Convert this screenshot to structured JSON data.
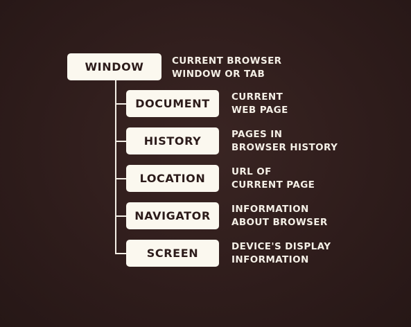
{
  "diagram": {
    "root": {
      "label": "WINDOW",
      "description": [
        "CURRENT BROWSER",
        "WINDOW OR TAB"
      ]
    },
    "children": [
      {
        "label": "DOCUMENT",
        "description": [
          "CURRENT",
          "WEB PAGE"
        ]
      },
      {
        "label": "HISTORY",
        "description": [
          "PAGES IN",
          "BROWSER HISTORY"
        ]
      },
      {
        "label": "LOCATION",
        "description": [
          "URL OF",
          "CURRENT PAGE"
        ]
      },
      {
        "label": "NAVIGATOR",
        "description": [
          "INFORMATION",
          "ABOUT BROWSER"
        ]
      },
      {
        "label": "SCREEN",
        "description": [
          "DEVICE'S DISPLAY",
          "INFORMATION"
        ]
      }
    ]
  },
  "colors": {
    "background": "#2e1c1b",
    "box_fill": "#fbf8ef",
    "box_text": "#2c1b1a",
    "description_text": "#f4efe6",
    "connector": "#f4efe6"
  }
}
